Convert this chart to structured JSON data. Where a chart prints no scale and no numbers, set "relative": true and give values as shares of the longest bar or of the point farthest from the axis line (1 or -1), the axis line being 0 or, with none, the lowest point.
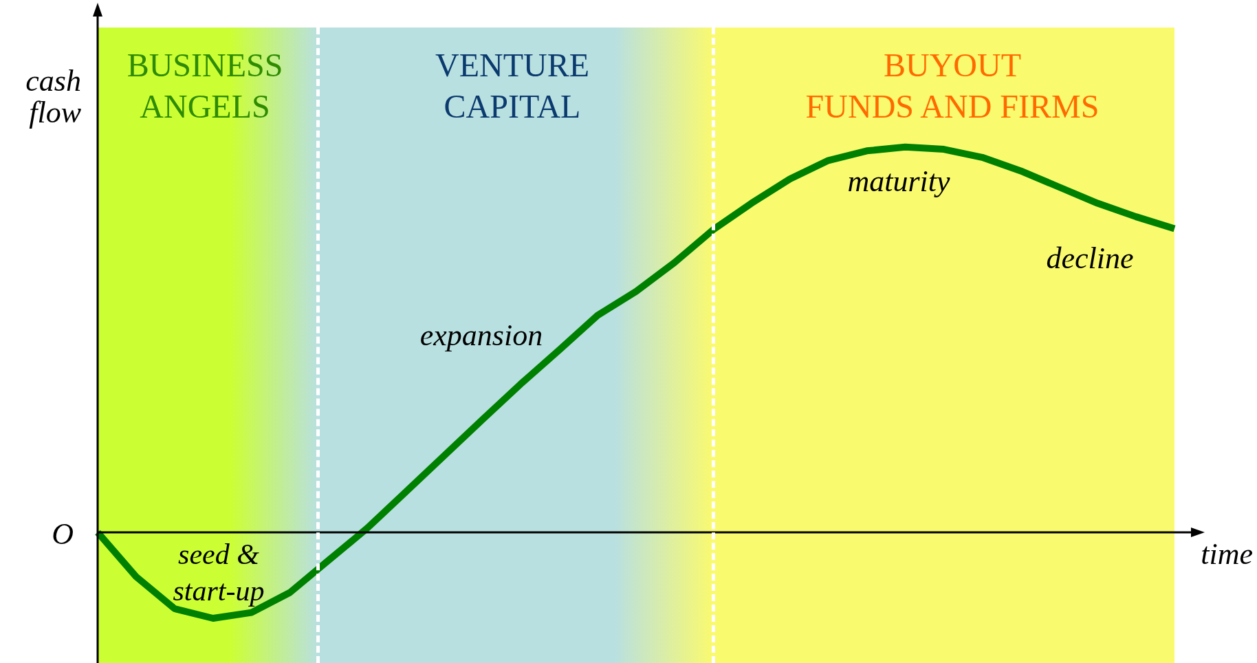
{
  "chart_data": {
    "type": "line",
    "relative": true,
    "xlabel": "time",
    "ylabel": "cash\nflow",
    "categories": [
      null,
      null,
      null,
      null,
      null,
      null,
      null,
      null,
      null,
      null,
      null,
      null,
      null,
      null,
      null,
      null,
      null,
      null,
      null,
      null,
      null,
      null,
      null,
      null,
      null,
      null,
      null,
      null,
      null
    ],
    "tick_labels": false,
    "grid": false,
    "legend": false,
    "marker": "none",
    "line_style": "solid",
    "series": [
      {
        "color": "#008000",
        "values": [
          0,
          -0.115,
          -0.198,
          -0.223,
          -0.208,
          -0.156,
          -0.073,
          0.01,
          0.104,
          0.198,
          0.292,
          0.385,
          0.473,
          0.563,
          0.625,
          0.7,
          0.785,
          0.854,
          0.917,
          0.965,
          0.99,
          1,
          0.994,
          0.973,
          0.938,
          0.896,
          0.854,
          0.819,
          0.788
        ]
      }
    ],
    "annotations": [
      "BUSINESS\nANGELS",
      "VENTURE\nCAPITAL",
      "BUYOUT\nFUNDS AND FIRMS",
      "O",
      "seed &\nstart-up",
      "expansion",
      "maturity",
      "decline"
    ]
  }
}
